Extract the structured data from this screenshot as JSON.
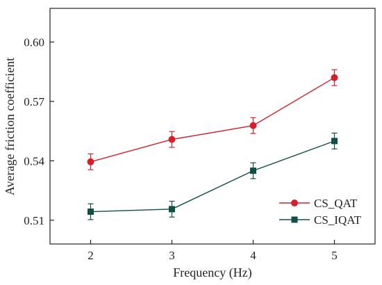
{
  "chart_data": {
    "type": "line",
    "xlabel": "Frequency (Hz)",
    "ylabel": "Average friction coefficient",
    "x": [
      2,
      3,
      4,
      5
    ],
    "xticks": [
      "2",
      "3",
      "4",
      "5"
    ],
    "xlim": [
      1.5,
      5.5
    ],
    "ylim": [
      0.498,
      0.617
    ],
    "yticks": [
      "0.51",
      "0.54",
      "0.57",
      "0.60"
    ],
    "grid": false,
    "legend_position": "bottom-right",
    "series": [
      {
        "name": "CS_QAT",
        "color": "#d4202a",
        "marker": "circle",
        "values": [
          0.5395,
          0.5508,
          0.5578,
          0.582
        ],
        "error": [
          0.004,
          0.004,
          0.004,
          0.004
        ]
      },
      {
        "name": "CS_IQAT",
        "color": "#0f4f46",
        "marker": "square",
        "values": [
          0.5143,
          0.5156,
          0.535,
          0.55
        ],
        "error": [
          0.004,
          0.004,
          0.004,
          0.004
        ]
      }
    ]
  }
}
